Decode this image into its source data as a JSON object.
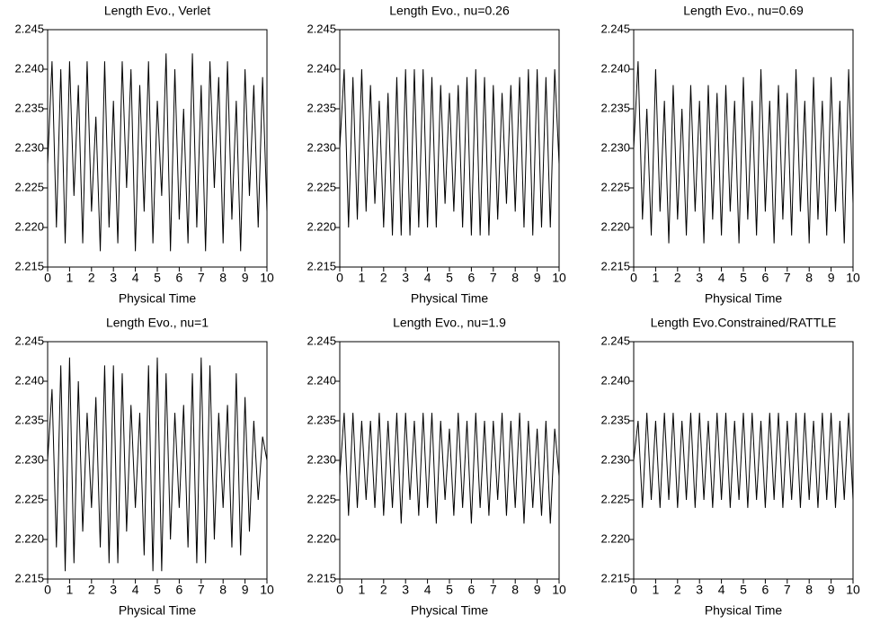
{
  "chart_data": [
    {
      "type": "line",
      "title": "Length Evo., Verlet",
      "xlabel": "Physical Time",
      "color": "#000000",
      "x": [
        0,
        0.2,
        0.4,
        0.6,
        0.8,
        1,
        1.2,
        1.4,
        1.6,
        1.8,
        2,
        2.2,
        2.4,
        2.6,
        2.8,
        3,
        3.2,
        3.4,
        3.6,
        3.8,
        4,
        4.2,
        4.4,
        4.6,
        4.8,
        5,
        5.2,
        5.4,
        5.6,
        5.8,
        6,
        6.2,
        6.4,
        6.6,
        6.8,
        7,
        7.2,
        7.4,
        7.6,
        7.8,
        8,
        8.2,
        8.4,
        8.6,
        8.8,
        9,
        9.2,
        9.4,
        9.6,
        9.8,
        10
      ],
      "values": [
        2.228,
        2.241,
        2.22,
        2.24,
        2.218,
        2.241,
        2.224,
        2.238,
        2.218,
        2.241,
        2.222,
        2.234,
        2.217,
        2.241,
        2.22,
        2.236,
        2.218,
        2.241,
        2.225,
        2.24,
        2.217,
        2.238,
        2.222,
        2.241,
        2.218,
        2.236,
        2.224,
        2.242,
        2.217,
        2.24,
        2.221,
        2.235,
        2.218,
        2.242,
        2.22,
        2.238,
        2.217,
        2.241,
        2.225,
        2.239,
        2.218,
        2.241,
        2.221,
        2.236,
        2.217,
        2.24,
        2.224,
        2.238,
        2.22,
        2.239,
        2.222
      ],
      "xlim": [
        0,
        10
      ],
      "xticks": [
        0,
        1,
        2,
        3,
        4,
        5,
        6,
        7,
        8,
        9,
        10
      ],
      "ylim": [
        2.215,
        2.245
      ],
      "yticks": [
        2.215,
        {
          "value": 2.22,
          "label": "2.220"
        },
        2.225,
        {
          "value": 2.23,
          "label": "2.230"
        },
        2.235,
        {
          "value": 2.24,
          "label": "2.240"
        },
        2.245
      ]
    },
    {
      "type": "line",
      "title": "Length Evo., nu=0.26",
      "xlabel": "Physical Time",
      "color": "#000000",
      "x": [
        0,
        0.2,
        0.4,
        0.6,
        0.8,
        1,
        1.2,
        1.4,
        1.6,
        1.8,
        2,
        2.2,
        2.4,
        2.6,
        2.8,
        3,
        3.2,
        3.4,
        3.6,
        3.8,
        4,
        4.2,
        4.4,
        4.6,
        4.8,
        5,
        5.2,
        5.4,
        5.6,
        5.8,
        6,
        6.2,
        6.4,
        6.6,
        6.8,
        7,
        7.2,
        7.4,
        7.6,
        7.8,
        8,
        8.2,
        8.4,
        8.6,
        8.8,
        9,
        9.2,
        9.4,
        9.6,
        9.8,
        10
      ],
      "values": [
        2.23,
        2.24,
        2.22,
        2.239,
        2.221,
        2.24,
        2.222,
        2.238,
        2.223,
        2.236,
        2.22,
        2.237,
        2.219,
        2.239,
        2.219,
        2.24,
        2.219,
        2.24,
        2.22,
        2.24,
        2.22,
        2.239,
        2.22,
        2.238,
        2.223,
        2.237,
        2.222,
        2.238,
        2.22,
        2.239,
        2.219,
        2.24,
        2.219,
        2.239,
        2.219,
        2.238,
        2.221,
        2.237,
        2.223,
        2.238,
        2.222,
        2.239,
        2.22,
        2.24,
        2.219,
        2.24,
        2.22,
        2.239,
        2.22,
        2.24,
        2.228
      ],
      "xlim": [
        0,
        10
      ],
      "xticks": [
        0,
        1,
        2,
        3,
        4,
        5,
        6,
        7,
        8,
        9,
        10
      ],
      "ylim": [
        2.215,
        2.245
      ],
      "yticks": [
        2.215,
        {
          "value": 2.22,
          "label": "2.220"
        },
        2.225,
        {
          "value": 2.23,
          "label": "2.230"
        },
        2.235,
        {
          "value": 2.24,
          "label": "2.240"
        },
        2.245
      ]
    },
    {
      "type": "line",
      "title": "Length Evo., nu=0.69",
      "xlabel": "Physical Time",
      "color": "#000000",
      "x": [
        0,
        0.2,
        0.4,
        0.6,
        0.8,
        1,
        1.2,
        1.4,
        1.6,
        1.8,
        2,
        2.2,
        2.4,
        2.6,
        2.8,
        3,
        3.2,
        3.4,
        3.6,
        3.8,
        4,
        4.2,
        4.4,
        4.6,
        4.8,
        5,
        5.2,
        5.4,
        5.6,
        5.8,
        6,
        6.2,
        6.4,
        6.6,
        6.8,
        7,
        7.2,
        7.4,
        7.6,
        7.8,
        8,
        8.2,
        8.4,
        8.6,
        8.8,
        9,
        9.2,
        9.4,
        9.6,
        9.8,
        10
      ],
      "values": [
        2.23,
        2.241,
        2.221,
        2.235,
        2.219,
        2.24,
        2.222,
        2.236,
        2.218,
        2.238,
        2.221,
        2.235,
        2.219,
        2.238,
        2.222,
        2.236,
        2.218,
        2.238,
        2.221,
        2.237,
        2.219,
        2.238,
        2.222,
        2.236,
        2.218,
        2.239,
        2.221,
        2.236,
        2.219,
        2.24,
        2.222,
        2.236,
        2.218,
        2.238,
        2.221,
        2.237,
        2.219,
        2.24,
        2.222,
        2.236,
        2.218,
        2.239,
        2.221,
        2.236,
        2.219,
        2.239,
        2.222,
        2.236,
        2.218,
        2.24,
        2.223
      ],
      "xlim": [
        0,
        10
      ],
      "xticks": [
        0,
        1,
        2,
        3,
        4,
        5,
        6,
        7,
        8,
        9,
        10
      ],
      "ylim": [
        2.215,
        2.245
      ],
      "yticks": [
        2.215,
        {
          "value": 2.22,
          "label": "2.220"
        },
        2.225,
        {
          "value": 2.23,
          "label": "2.230"
        },
        2.235,
        {
          "value": 2.24,
          "label": "2.240"
        },
        2.245
      ]
    },
    {
      "type": "line",
      "title": "Length Evo., nu=1",
      "xlabel": "Physical Time",
      "color": "#000000",
      "x": [
        0,
        0.2,
        0.4,
        0.6,
        0.8,
        1,
        1.2,
        1.4,
        1.6,
        1.8,
        2,
        2.2,
        2.4,
        2.6,
        2.8,
        3,
        3.2,
        3.4,
        3.6,
        3.8,
        4,
        4.2,
        4.4,
        4.6,
        4.8,
        5,
        5.2,
        5.4,
        5.6,
        5.8,
        6,
        6.2,
        6.4,
        6.6,
        6.8,
        7,
        7.2,
        7.4,
        7.6,
        7.8,
        8,
        8.2,
        8.4,
        8.6,
        8.8,
        9,
        9.2,
        9.4,
        9.6,
        9.8,
        10
      ],
      "values": [
        2.23,
        2.239,
        2.219,
        2.242,
        2.216,
        2.243,
        2.217,
        2.24,
        2.221,
        2.236,
        2.224,
        2.238,
        2.219,
        2.242,
        2.217,
        2.242,
        2.217,
        2.241,
        2.221,
        2.237,
        2.224,
        2.236,
        2.218,
        2.242,
        2.216,
        2.243,
        2.216,
        2.241,
        2.22,
        2.236,
        2.224,
        2.237,
        2.219,
        2.241,
        2.217,
        2.243,
        2.217,
        2.242,
        2.22,
        2.236,
        2.224,
        2.237,
        2.219,
        2.241,
        2.218,
        2.238,
        2.221,
        2.235,
        2.225,
        2.233,
        2.23
      ],
      "xlim": [
        0,
        10
      ],
      "xticks": [
        0,
        1,
        2,
        3,
        4,
        5,
        6,
        7,
        8,
        9,
        10
      ],
      "ylim": [
        2.215,
        2.245
      ],
      "yticks": [
        2.215,
        {
          "value": 2.22,
          "label": "2.220"
        },
        2.225,
        {
          "value": 2.23,
          "label": "2.230"
        },
        2.235,
        {
          "value": 2.24,
          "label": "2.240"
        },
        2.245
      ]
    },
    {
      "type": "line",
      "title": "Length Evo., nu=1.9",
      "xlabel": "Physical Time",
      "color": "#000000",
      "x": [
        0,
        0.2,
        0.4,
        0.6,
        0.8,
        1,
        1.2,
        1.4,
        1.6,
        1.8,
        2,
        2.2,
        2.4,
        2.6,
        2.8,
        3,
        3.2,
        3.4,
        3.6,
        3.8,
        4,
        4.2,
        4.4,
        4.6,
        4.8,
        5,
        5.2,
        5.4,
        5.6,
        5.8,
        6,
        6.2,
        6.4,
        6.6,
        6.8,
        7,
        7.2,
        7.4,
        7.6,
        7.8,
        8,
        8.2,
        8.4,
        8.6,
        8.8,
        9,
        9.2,
        9.4,
        9.6,
        9.8,
        10
      ],
      "values": [
        2.228,
        2.236,
        2.223,
        2.236,
        2.224,
        2.235,
        2.225,
        2.235,
        2.224,
        2.236,
        2.223,
        2.235,
        2.224,
        2.236,
        2.222,
        2.236,
        2.225,
        2.235,
        2.223,
        2.236,
        2.224,
        2.236,
        2.222,
        2.235,
        2.225,
        2.234,
        2.223,
        2.236,
        2.224,
        2.235,
        2.222,
        2.236,
        2.224,
        2.235,
        2.223,
        2.235,
        2.225,
        2.236,
        2.223,
        2.235,
        2.224,
        2.236,
        2.222,
        2.235,
        2.224,
        2.234,
        2.223,
        2.235,
        2.222,
        2.234,
        2.228
      ],
      "xlim": [
        0,
        10
      ],
      "xticks": [
        0,
        1,
        2,
        3,
        4,
        5,
        6,
        7,
        8,
        9,
        10
      ],
      "ylim": [
        2.215,
        2.245
      ],
      "yticks": [
        2.215,
        {
          "value": 2.22,
          "label": "2.220"
        },
        2.225,
        {
          "value": 2.23,
          "label": "2.230"
        },
        2.235,
        {
          "value": 2.24,
          "label": "2.240"
        },
        2.245
      ]
    },
    {
      "type": "line",
      "title": "Length Evo.Constrained/RATTLE",
      "xlabel": "Physical Time",
      "color": "#000000",
      "x": [
        0,
        0.2,
        0.4,
        0.6,
        0.8,
        1,
        1.2,
        1.4,
        1.6,
        1.8,
        2,
        2.2,
        2.4,
        2.6,
        2.8,
        3,
        3.2,
        3.4,
        3.6,
        3.8,
        4,
        4.2,
        4.4,
        4.6,
        4.8,
        5,
        5.2,
        5.4,
        5.6,
        5.8,
        6,
        6.2,
        6.4,
        6.6,
        6.8,
        7,
        7.2,
        7.4,
        7.6,
        7.8,
        8,
        8.2,
        8.4,
        8.6,
        8.8,
        9,
        9.2,
        9.4,
        9.6,
        9.8,
        10
      ],
      "values": [
        2.23,
        2.235,
        2.224,
        2.236,
        2.225,
        2.235,
        2.224,
        2.236,
        2.225,
        2.236,
        2.224,
        2.235,
        2.225,
        2.236,
        2.224,
        2.236,
        2.225,
        2.235,
        2.224,
        2.236,
        2.225,
        2.236,
        2.224,
        2.235,
        2.225,
        2.236,
        2.224,
        2.236,
        2.225,
        2.235,
        2.224,
        2.236,
        2.225,
        2.236,
        2.224,
        2.235,
        2.225,
        2.236,
        2.224,
        2.236,
        2.225,
        2.235,
        2.224,
        2.236,
        2.225,
        2.236,
        2.224,
        2.235,
        2.225,
        2.236,
        2.225
      ],
      "xlim": [
        0,
        10
      ],
      "xticks": [
        0,
        1,
        2,
        3,
        4,
        5,
        6,
        7,
        8,
        9,
        10
      ],
      "ylim": [
        2.215,
        2.245
      ],
      "yticks": [
        2.215,
        {
          "value": 2.22,
          "label": "2.220"
        },
        2.225,
        {
          "value": 2.23,
          "label": "2.230"
        },
        2.235,
        {
          "value": 2.24,
          "label": "2.240"
        },
        2.245
      ]
    }
  ]
}
